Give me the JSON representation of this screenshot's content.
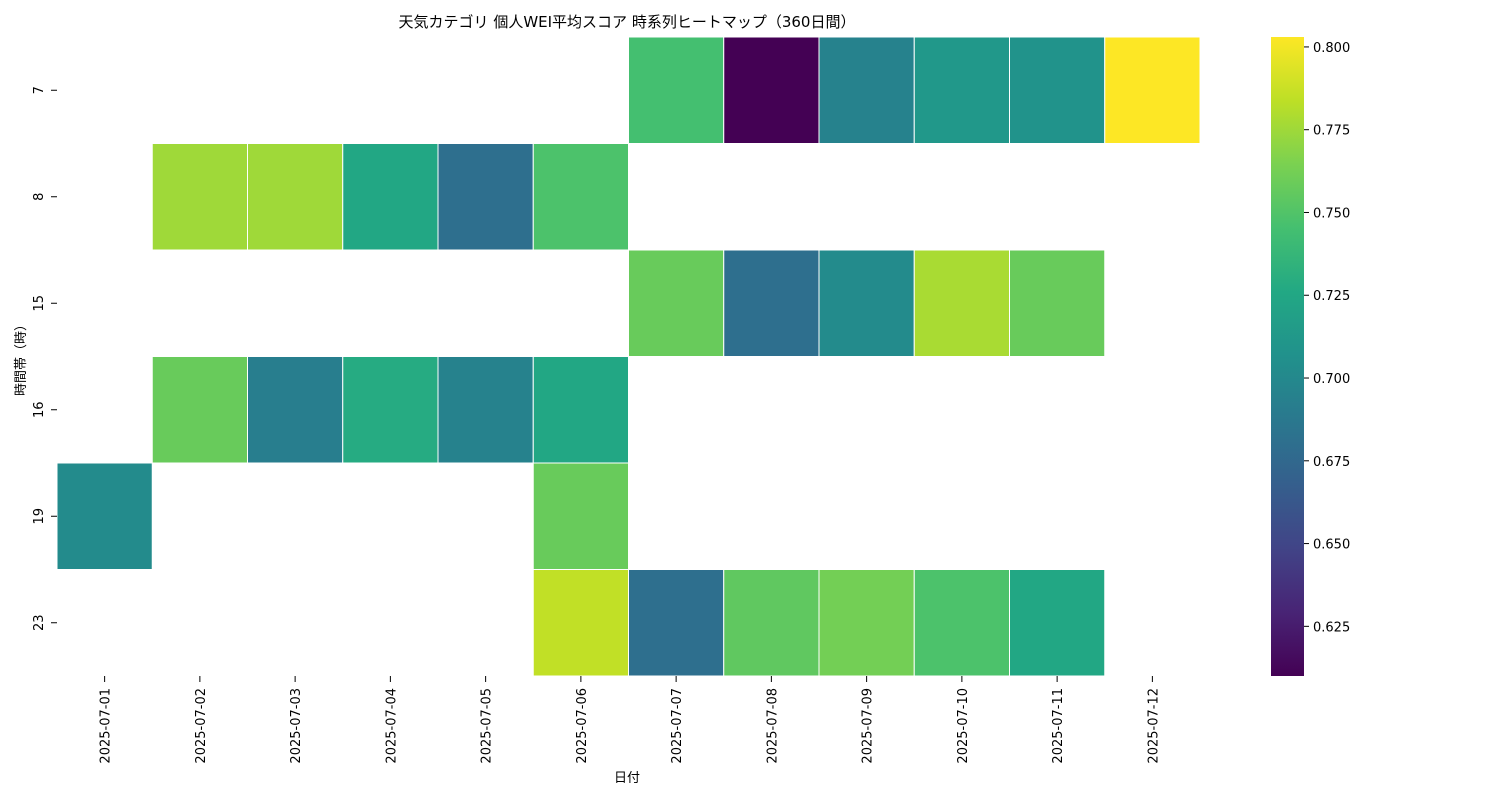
{
  "chart_data": {
    "type": "heatmap",
    "title": "天気カテゴリ 個人WEI平均スコア 時系列ヒートマップ（360日間）",
    "xlabel": "日付",
    "ylabel": "時間帯（時）",
    "x_categories": [
      "2025-07-01",
      "2025-07-02",
      "2025-07-03",
      "2025-07-04",
      "2025-07-05",
      "2025-07-06",
      "2025-07-07",
      "2025-07-08",
      "2025-07-09",
      "2025-07-10",
      "2025-07-11",
      "2025-07-12"
    ],
    "y_categories": [
      "7",
      "8",
      "15",
      "16",
      "19",
      "23"
    ],
    "values": [
      [
        null,
        null,
        null,
        null,
        null,
        null,
        0.745,
        0.61,
        0.695,
        0.712,
        0.708,
        0.803
      ],
      [
        null,
        0.775,
        0.775,
        0.725,
        0.68,
        0.748,
        null,
        null,
        null,
        null,
        null,
        null
      ],
      [
        null,
        null,
        null,
        null,
        null,
        null,
        0.758,
        0.68,
        0.702,
        0.778,
        0.758,
        null
      ],
      [
        null,
        0.758,
        0.692,
        0.728,
        0.695,
        0.725,
        null,
        null,
        null,
        null,
        null,
        null
      ],
      [
        0.702,
        null,
        null,
        null,
        null,
        0.758,
        null,
        null,
        null,
        null,
        null,
        null
      ],
      [
        null,
        null,
        null,
        null,
        null,
        0.785,
        0.68,
        0.755,
        0.762,
        0.748,
        0.725,
        null
      ]
    ],
    "colormap": "viridis",
    "vmin": 0.61,
    "vmax": 0.803,
    "colorbar_ticks": [
      0.625,
      0.65,
      0.675,
      0.7,
      0.725,
      0.75,
      0.775,
      0.8
    ],
    "colorbar_tick_labels": [
      "0.625",
      "0.650",
      "0.675",
      "0.700",
      "0.725",
      "0.750",
      "0.775",
      "0.800"
    ]
  }
}
